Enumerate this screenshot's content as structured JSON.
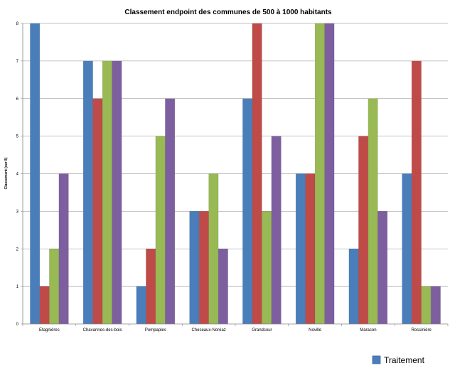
{
  "chart_data": {
    "type": "bar",
    "title": "Classement endpoint des communes de 500 à 1000 habitants",
    "ylabel": "Classement (sur 8)",
    "xlabel": "",
    "ylim": [
      0,
      8
    ],
    "yticks": [
      "0",
      "1",
      "2",
      "3",
      "4",
      "5",
      "6",
      "7",
      "8"
    ],
    "grid": true,
    "legend_position": "bottom-right",
    "categories": [
      "Etagnières",
      "Chavannes-des-bois",
      "Pompaples",
      "Cheseaux-Noréaz",
      "Grandcour",
      "Noville",
      "Maracon",
      "Rossinière"
    ],
    "series": [
      {
        "name": "Traitement",
        "color": "#4a7ebb",
        "values": [
          8,
          7,
          1,
          3,
          6,
          4,
          2,
          4
        ]
      },
      {
        "color": "#be4b48",
        "values": [
          1,
          6,
          2,
          3,
          8,
          4,
          5,
          7
        ]
      },
      {
        "color": "#98b954",
        "values": [
          2,
          7,
          5,
          4,
          3,
          8,
          6,
          1
        ]
      },
      {
        "color": "#7d5fa0",
        "values": [
          4,
          7,
          6,
          2,
          5,
          8,
          3,
          1
        ]
      }
    ]
  }
}
